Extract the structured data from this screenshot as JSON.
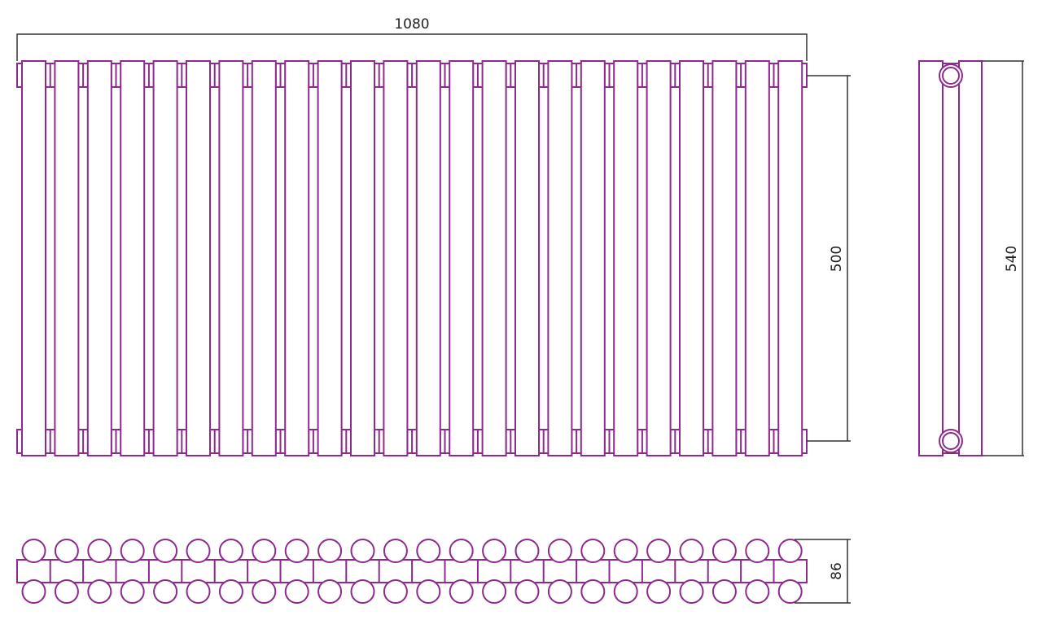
{
  "drawing": {
    "tube_count": 24,
    "colors": {
      "radiator": "#8e2a8e",
      "dimension": "#333333"
    },
    "dimensions": {
      "width": "1080",
      "axis_distance": "500",
      "height": "540",
      "depth": "86"
    }
  }
}
